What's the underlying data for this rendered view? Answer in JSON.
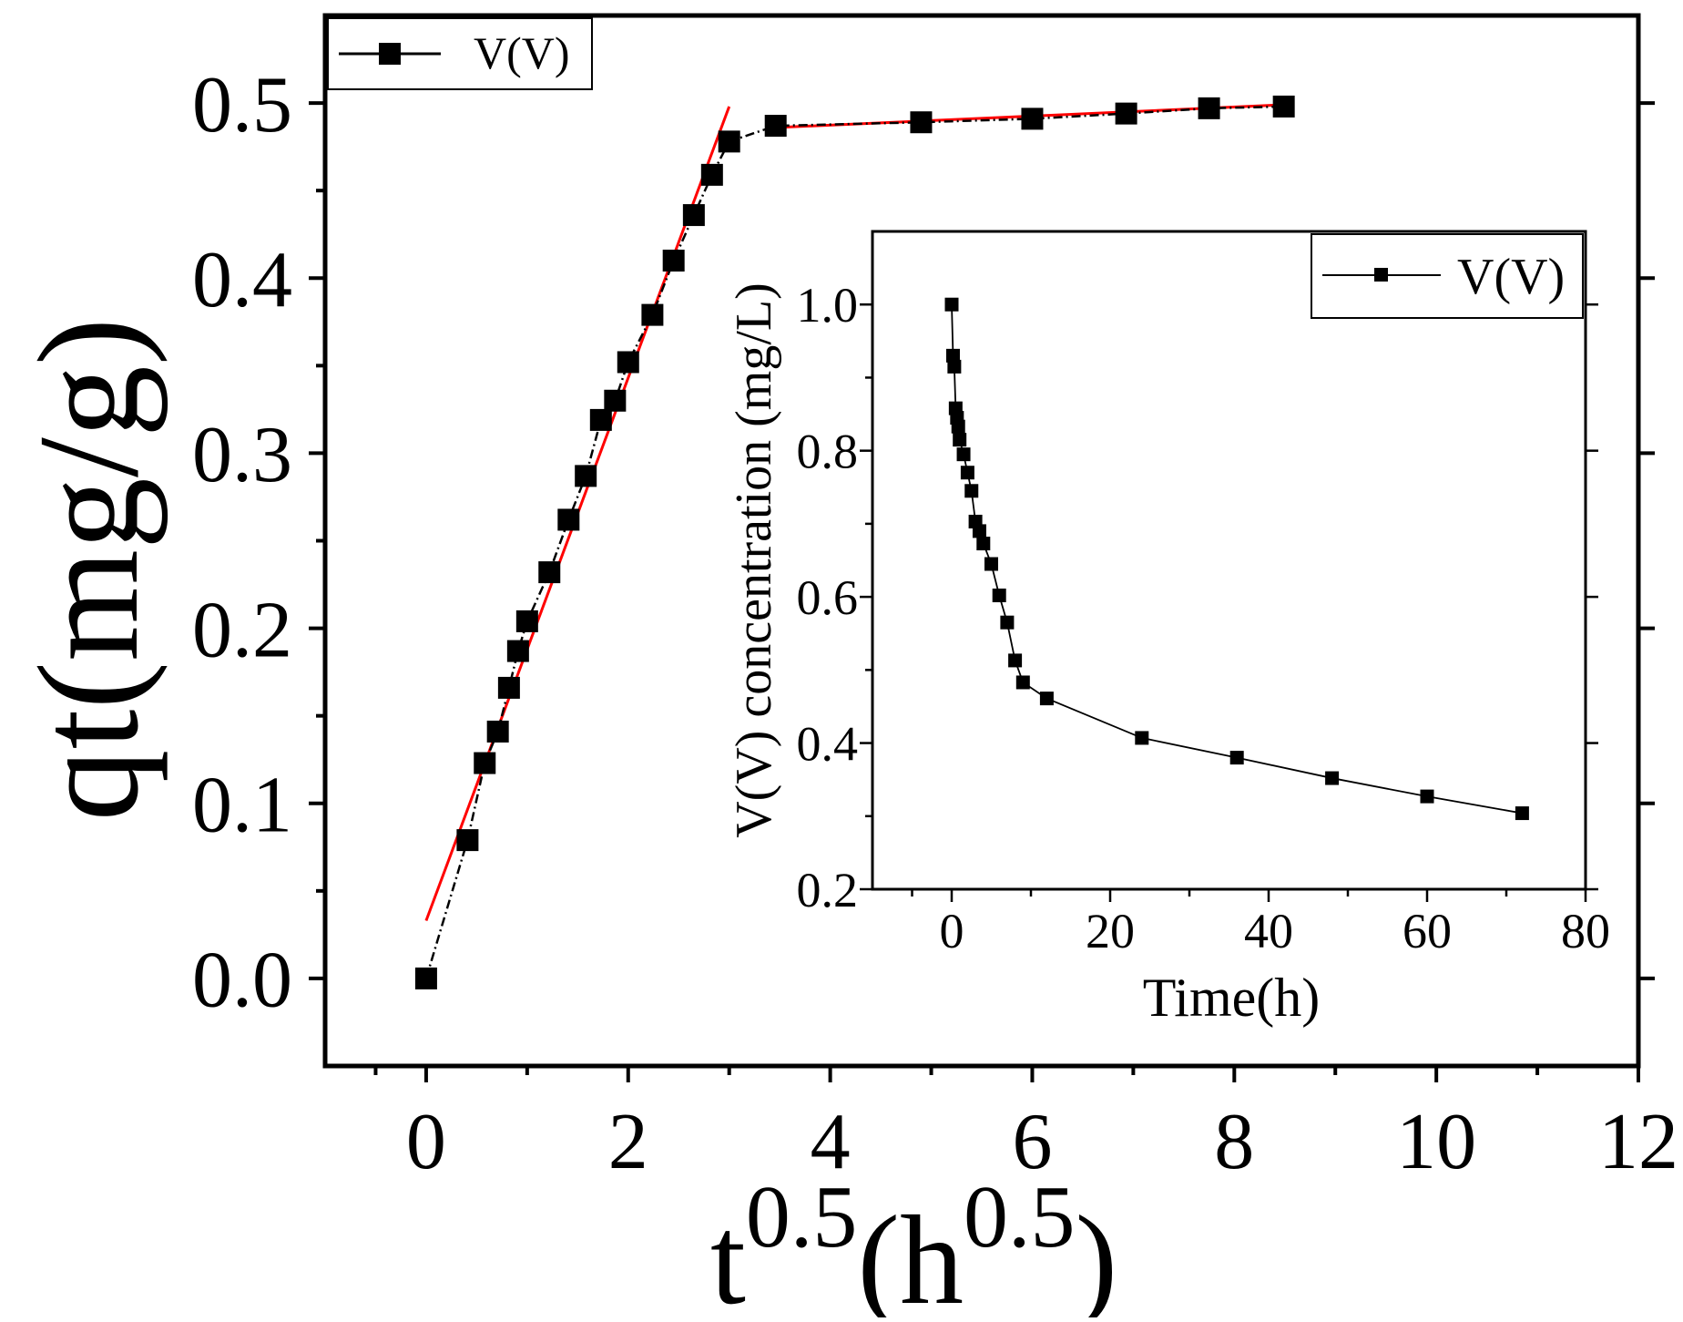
{
  "chart_data": [
    {
      "type": "scatter",
      "role": "main",
      "title": "",
      "ylabel": "qt(mg/g)",
      "xlabel_base": "t",
      "xlabel_exp": "0.5",
      "xlabel_unit_open": "(h",
      "xlabel_unit_exp": "0.5",
      "xlabel_unit_close": ")",
      "xlim": [
        -1,
        12
      ],
      "ylim": [
        -0.05,
        0.55
      ],
      "xticks": [
        "0",
        "2",
        "4",
        "6",
        "8",
        "10",
        "12"
      ],
      "xtick_values": [
        0,
        2,
        4,
        6,
        8,
        10,
        12
      ],
      "yticks": [
        "0.0",
        "0.1",
        "0.2",
        "0.3",
        "0.4",
        "0.5"
      ],
      "ytick_values": [
        0.0,
        0.1,
        0.2,
        0.3,
        0.4,
        0.5
      ],
      "legend": {
        "label": "V(V)",
        "location": "top-left"
      },
      "series": [
        {
          "name": "V(V)",
          "x": [
            0,
            0.41,
            0.58,
            0.71,
            0.82,
            0.91,
            1.0,
            1.22,
            1.41,
            1.58,
            1.73,
            1.87,
            2.0,
            2.24,
            2.45,
            2.65,
            2.83,
            3.0,
            3.46,
            4.9,
            6.0,
            6.93,
            7.75,
            8.49
          ],
          "y": [
            0.0,
            0.079,
            0.123,
            0.141,
            0.166,
            0.187,
            0.204,
            0.232,
            0.262,
            0.287,
            0.319,
            0.33,
            0.352,
            0.379,
            0.41,
            0.436,
            0.459,
            0.478,
            0.487,
            0.489,
            0.491,
            0.494,
            0.497,
            0.498
          ]
        }
      ],
      "fit_lines": [
        {
          "name": "fit-stage-1",
          "color": "#ff0000",
          "x": [
            0,
            3.0
          ],
          "y": [
            0.033,
            0.498
          ]
        },
        {
          "name": "fit-stage-2",
          "color": "#ff0000",
          "x": [
            3.46,
            8.49
          ],
          "y": [
            0.486,
            0.499
          ]
        }
      ]
    },
    {
      "type": "line",
      "role": "inset",
      "title": "",
      "xlabel": "Time(h)",
      "ylabel": "V(V) concentration (mg/L)",
      "xlim": [
        -10,
        80
      ],
      "ylim": [
        0.2,
        1.1
      ],
      "xticks": [
        "0",
        "20",
        "40",
        "60",
        "80"
      ],
      "xtick_values": [
        0,
        20,
        40,
        60,
        80
      ],
      "yticks": [
        "0.2",
        "0.4",
        "0.6",
        "0.8",
        "1.0"
      ],
      "ytick_values": [
        0.2,
        0.4,
        0.6,
        0.8,
        1.0
      ],
      "legend": {
        "label": "V(V)",
        "location": "top-right"
      },
      "series": [
        {
          "name": "V(V)",
          "x": [
            0,
            0.17,
            0.33,
            0.5,
            0.67,
            0.83,
            1.0,
            1.5,
            2.0,
            2.5,
            3.0,
            3.5,
            4.0,
            5.0,
            6.0,
            7.0,
            8.0,
            9.0,
            12.0,
            24.0,
            36.0,
            48.0,
            60.0,
            72.0
          ],
          "y": [
            1.0,
            0.93,
            0.915,
            0.858,
            0.845,
            0.833,
            0.815,
            0.795,
            0.77,
            0.745,
            0.703,
            0.69,
            0.673,
            0.645,
            0.602,
            0.565,
            0.513,
            0.483,
            0.461,
            0.407,
            0.38,
            0.352,
            0.327,
            0.304
          ]
        }
      ]
    }
  ],
  "colors": {
    "axis": "#000000",
    "marker": "#000000",
    "fit": "#ff0000",
    "background": "#ffffff"
  }
}
